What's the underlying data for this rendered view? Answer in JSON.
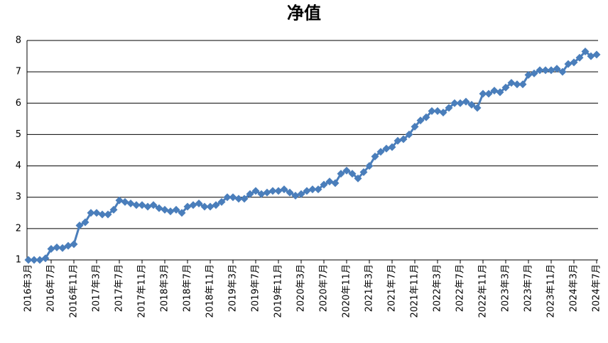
{
  "chart_data": {
    "type": "line",
    "title": "净值",
    "categories": [
      "2016年3月",
      null,
      null,
      null,
      "2016年7月",
      null,
      null,
      null,
      "2016年11月",
      null,
      null,
      null,
      "2017年3月",
      null,
      null,
      null,
      "2017年7月",
      null,
      null,
      null,
      "2017年11月",
      null,
      null,
      null,
      "2018年3月",
      null,
      null,
      null,
      "2018年7月",
      null,
      null,
      null,
      "2018年11月",
      null,
      null,
      null,
      "2019年3月",
      null,
      null,
      null,
      "2019年7月",
      null,
      null,
      null,
      "2019年11月",
      null,
      null,
      null,
      "2020年3月",
      null,
      null,
      null,
      "2020年7月",
      null,
      null,
      null,
      "2020年11月",
      null,
      null,
      null,
      "2021年3月",
      null,
      null,
      null,
      "2021年7月",
      null,
      null,
      null,
      "2021年11月",
      null,
      null,
      null,
      "2022年3月",
      null,
      null,
      null,
      "2022年7月",
      null,
      null,
      null,
      "2022年11月",
      null,
      null,
      null,
      "2023年3月",
      null,
      null,
      null,
      "2023年7月",
      null,
      null,
      null,
      "2023年11月",
      null,
      null,
      null,
      "2024年3月",
      null,
      null,
      null,
      "2024年7月"
    ],
    "values": [
      1.0,
      1.0,
      1.0,
      1.05,
      1.35,
      1.4,
      1.38,
      1.45,
      1.5,
      2.1,
      2.2,
      2.5,
      2.5,
      2.45,
      2.45,
      2.6,
      2.9,
      2.85,
      2.8,
      2.75,
      2.75,
      2.7,
      2.75,
      2.65,
      2.6,
      2.55,
      2.6,
      2.5,
      2.7,
      2.75,
      2.8,
      2.7,
      2.7,
      2.75,
      2.85,
      3.0,
      3.0,
      2.95,
      2.95,
      3.1,
      3.2,
      3.1,
      3.15,
      3.2,
      3.2,
      3.25,
      3.15,
      3.05,
      3.1,
      3.2,
      3.25,
      3.25,
      3.4,
      3.5,
      3.45,
      3.75,
      3.85,
      3.75,
      3.6,
      3.8,
      4.0,
      4.3,
      4.45,
      4.55,
      4.6,
      4.8,
      4.85,
      5.0,
      5.25,
      5.45,
      5.55,
      5.75,
      5.75,
      5.7,
      5.85,
      6.0,
      6.0,
      6.05,
      5.95,
      5.85,
      6.3,
      6.3,
      6.4,
      6.35,
      6.5,
      6.65,
      6.6,
      6.6,
      6.9,
      6.95,
      7.05,
      7.05,
      7.05,
      7.1,
      7.0,
      7.25,
      7.3,
      7.45,
      7.65,
      7.5,
      7.55
    ],
    "color": "#4a7ebb",
    "ylim": [
      1,
      8
    ],
    "yticks": [
      1,
      2,
      3,
      4,
      5,
      6,
      7,
      8
    ],
    "grid": true
  }
}
